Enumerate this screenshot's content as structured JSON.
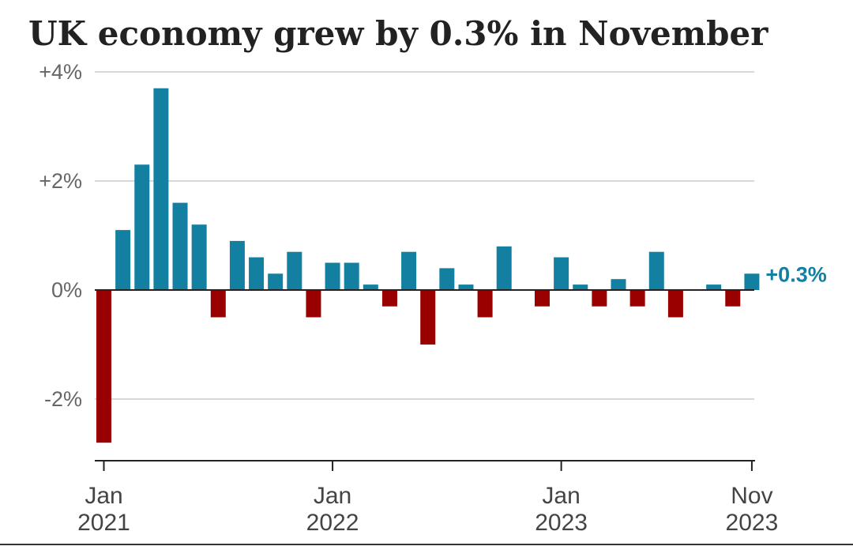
{
  "colors": {
    "positive": "#1380a1",
    "negative": "#990000",
    "grid": "#cccccc",
    "axis": "#222222"
  },
  "chart_data": {
    "type": "bar",
    "title": "UK economy grew by 0.3% in November",
    "ylabel": "",
    "xlabel": "",
    "ylim": [
      -2.8,
      4
    ],
    "yticks": [
      {
        "value": 4,
        "label": "+4%"
      },
      {
        "value": 2,
        "label": "+2%"
      },
      {
        "value": 0,
        "label": "0%"
      },
      {
        "value": -2,
        "label": "-2%"
      }
    ],
    "xticks": [
      {
        "index": 0,
        "line1": "Jan",
        "line2": "2021"
      },
      {
        "index": 12,
        "line1": "Jan",
        "line2": "2022"
      },
      {
        "index": 24,
        "line1": "Jan",
        "line2": "2023"
      },
      {
        "index": 34,
        "line1": "Nov",
        "line2": "2023"
      }
    ],
    "grid": true,
    "categories": [
      "Jan 2021",
      "Feb 2021",
      "Mar 2021",
      "Apr 2021",
      "May 2021",
      "Jun 2021",
      "Jul 2021",
      "Aug 2021",
      "Sep 2021",
      "Oct 2021",
      "Nov 2021",
      "Dec 2021",
      "Jan 2022",
      "Feb 2022",
      "Mar 2022",
      "Apr 2022",
      "May 2022",
      "Jun 2022",
      "Jul 2022",
      "Aug 2022",
      "Sep 2022",
      "Oct 2022",
      "Nov 2022",
      "Dec 2022",
      "Jan 2023",
      "Feb 2023",
      "Mar 2023",
      "Apr 2023",
      "May 2023",
      "Jun 2023",
      "Jul 2023",
      "Aug 2023",
      "Sep 2023",
      "Oct 2023",
      "Nov 2023"
    ],
    "values": [
      -2.8,
      1.1,
      2.3,
      3.7,
      1.6,
      1.2,
      -0.5,
      0.9,
      0.6,
      0.3,
      0.7,
      -0.5,
      0.5,
      0.5,
      0.1,
      -0.3,
      0.7,
      -1.0,
      0.4,
      0.1,
      -0.5,
      0.8,
      0.0,
      -0.3,
      0.6,
      0.1,
      -0.3,
      0.2,
      -0.3,
      0.7,
      -0.5,
      0.0,
      0.1,
      -0.3,
      0.3
    ],
    "annotation": {
      "index": 34,
      "label": "+0.3%"
    }
  }
}
